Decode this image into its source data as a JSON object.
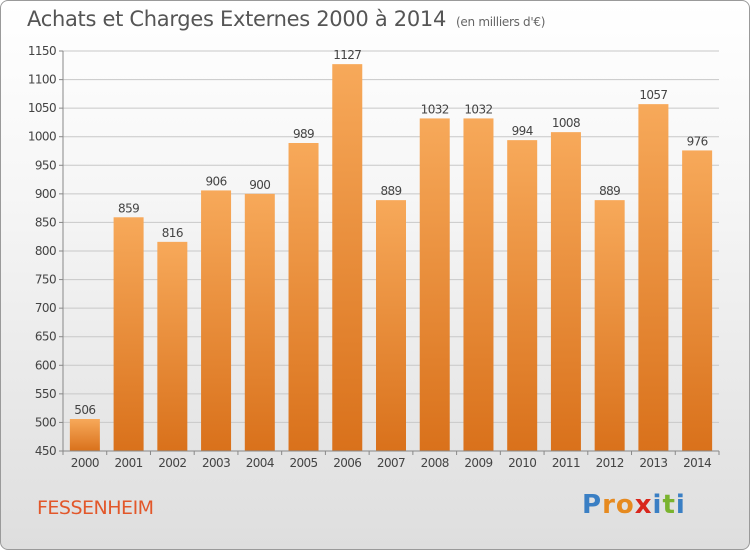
{
  "header": {
    "title": "Achats et Charges Externes 2000 à 2014",
    "subtitle": "(en milliers d'€)"
  },
  "footer": {
    "commune": "FESSENHEIM",
    "logo": "Proxiti",
    "logo_letters": [
      "P",
      "r",
      "o",
      "x",
      "i",
      "t",
      "i"
    ],
    "logo_colors": [
      "#3a7fc4",
      "#e68a1f",
      "#e68a1f",
      "#d9261c",
      "#3a7fc4",
      "#7ab32e",
      "#3a7fc4"
    ]
  },
  "chart_data": {
    "type": "bar",
    "categories": [
      "2000",
      "2001",
      "2002",
      "2003",
      "2004",
      "2005",
      "2006",
      "2007",
      "2008",
      "2009",
      "2010",
      "2011",
      "2012",
      "2013",
      "2014"
    ],
    "values": [
      506,
      859,
      816,
      906,
      900,
      989,
      1127,
      889,
      1032,
      1032,
      994,
      1008,
      889,
      1057,
      976
    ],
    "ylim": [
      450,
      1150
    ],
    "yticks": [
      450,
      500,
      550,
      600,
      650,
      700,
      750,
      800,
      850,
      900,
      950,
      1000,
      1050,
      1100,
      1150
    ],
    "grid": true,
    "bar_color_top": "#f7a95a",
    "bar_color_bottom": "#d9711b"
  }
}
